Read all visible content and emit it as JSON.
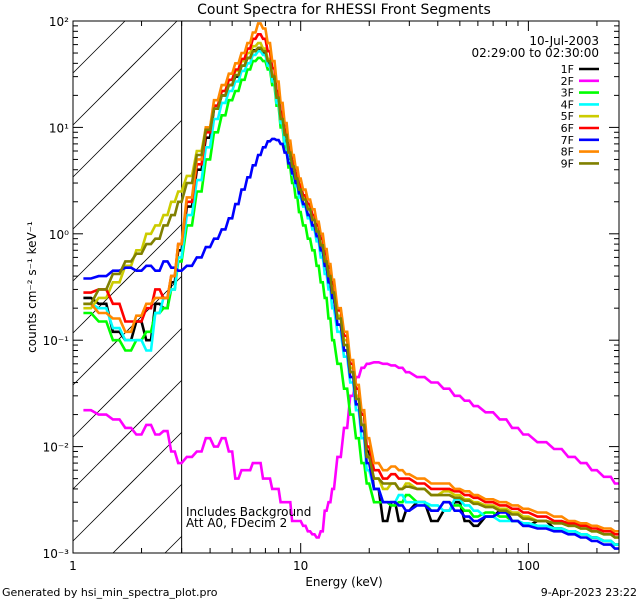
{
  "chart_data": {
    "type": "line",
    "title": "Count Spectra for RHESSI Front Segments",
    "xlabel": "Energy (keV)",
    "ylabel": "counts cm⁻² s⁻¹ keV⁻¹",
    "xscale": "log",
    "yscale": "log",
    "xlim": [
      1,
      250
    ],
    "ylim": [
      0.001,
      100
    ],
    "x_tick_labels": [
      "1",
      "10",
      "100"
    ],
    "y_tick_labels": [
      "10⁻³",
      "10⁻²",
      "10⁻¹",
      "10⁰",
      "10¹",
      "10²"
    ],
    "date": "10-Jul-2003",
    "time_range": "02:29:00 to 02:30:00",
    "annotation_lines": [
      "Includes Background",
      "Att A0, FDecim 2"
    ],
    "hatched_region_max_kev": 3,
    "energy_bins": [
      1.2,
      1.4,
      1.6,
      1.8,
      2.0,
      2.2,
      2.4,
      2.6,
      2.8,
      3.0,
      3.33,
      3.67,
      4.0,
      4.33,
      4.67,
      5.0,
      5.33,
      5.67,
      6.0,
      6.33,
      6.67,
      7.0,
      7.33,
      7.67,
      8.0,
      8.33,
      8.67,
      9.0,
      9.33,
      9.67,
      10.0,
      10.5,
      11.0,
      11.5,
      12.0,
      12.5,
      13.0,
      13.5,
      14.0,
      15.0,
      16.0,
      17.0,
      18.0,
      19.0,
      20.0,
      22.0,
      24.0,
      26.0,
      28.0,
      30.0,
      35.0,
      40.0,
      45.0,
      50.0,
      55.0,
      60.0,
      70.0,
      80.0,
      90.0,
      100.0,
      120.0,
      140.0,
      160.0,
      180.0,
      200.0,
      230.0,
      250.0
    ],
    "series": [
      {
        "name": "1F",
        "color": "#000000",
        "values": [
          0.25,
          0.22,
          0.12,
          0.1,
          0.15,
          0.1,
          0.22,
          0.2,
          0.35,
          0.7,
          1.8,
          4.0,
          8.0,
          15.0,
          20.0,
          25.0,
          30.0,
          38.0,
          45.0,
          53.0,
          55.0,
          50.0,
          40.0,
          28.0,
          18.0,
          11.0,
          7.5,
          5.0,
          3.8,
          3.0,
          2.4,
          1.9,
          1.5,
          1.2,
          0.95,
          0.7,
          0.5,
          0.35,
          0.25,
          0.14,
          0.08,
          0.05,
          0.03,
          0.02,
          0.009,
          0.004,
          0.002,
          0.003,
          0.002,
          0.0025,
          0.003,
          0.002,
          0.0025,
          0.003,
          0.002,
          0.0018,
          0.0022,
          0.0025,
          0.002,
          0.0018,
          0.002,
          0.0017,
          0.0016,
          0.0015,
          0.0014,
          0.0013,
          0.0012
        ]
      },
      {
        "name": "2F",
        "color": "#ff00ff",
        "values": [
          0.022,
          0.02,
          0.018,
          0.015,
          0.013,
          0.016,
          0.013,
          0.014,
          0.009,
          0.007,
          0.008,
          0.009,
          0.012,
          0.01,
          0.012,
          0.009,
          0.005,
          0.006,
          0.006,
          0.007,
          0.007,
          0.005,
          0.005,
          0.004,
          0.004,
          0.003,
          0.003,
          0.003,
          0.002,
          0.002,
          0.002,
          0.0018,
          0.0016,
          0.0015,
          0.0014,
          0.0016,
          0.0025,
          0.003,
          0.004,
          0.008,
          0.015,
          0.03,
          0.045,
          0.055,
          0.06,
          0.062,
          0.06,
          0.058,
          0.055,
          0.05,
          0.045,
          0.04,
          0.035,
          0.03,
          0.027,
          0.024,
          0.021,
          0.018,
          0.015,
          0.013,
          0.011,
          0.0095,
          0.008,
          0.007,
          0.006,
          0.0052,
          0.0045
        ]
      },
      {
        "name": "3F",
        "color": "#00ff00",
        "values": [
          0.18,
          0.15,
          0.1,
          0.08,
          0.1,
          0.12,
          0.18,
          0.2,
          0.3,
          0.55,
          1.2,
          2.5,
          5.0,
          9.0,
          13.0,
          18.0,
          22.0,
          28.0,
          35.0,
          42.0,
          45.0,
          42.0,
          35.0,
          25.0,
          16.0,
          10.0,
          6.5,
          4.2,
          3.0,
          2.2,
          1.6,
          1.2,
          0.9,
          0.7,
          0.5,
          0.35,
          0.25,
          0.16,
          0.1,
          0.06,
          0.035,
          0.02,
          0.012,
          0.007,
          0.0045,
          0.003,
          0.003,
          0.0028,
          0.003,
          0.0035,
          0.003,
          0.0025,
          0.003,
          0.0028,
          0.0025,
          0.0022,
          0.0024,
          0.0022,
          0.002,
          0.0019,
          0.0018,
          0.0017,
          0.0016,
          0.0015,
          0.0014,
          0.0013,
          0.0012
        ]
      },
      {
        "name": "4F",
        "color": "#00ffff",
        "values": [
          0.22,
          0.2,
          0.13,
          0.1,
          0.1,
          0.08,
          0.18,
          0.25,
          0.3,
          0.6,
          1.5,
          3.2,
          6.5,
          12.0,
          17.0,
          22.0,
          27.0,
          34.0,
          40.0,
          48.0,
          52.0,
          48.0,
          38.0,
          27.0,
          17.0,
          11.0,
          7.0,
          4.8,
          3.6,
          2.8,
          2.2,
          1.8,
          1.4,
          1.1,
          0.85,
          0.6,
          0.42,
          0.3,
          0.2,
          0.12,
          0.07,
          0.04,
          0.022,
          0.012,
          0.006,
          0.004,
          0.003,
          0.003,
          0.0035,
          0.003,
          0.003,
          0.0028,
          0.0025,
          0.0032,
          0.0028,
          0.0025,
          0.0022,
          0.002,
          0.002,
          0.0019,
          0.0018,
          0.0017,
          0.0016,
          0.0015,
          0.0014,
          0.0013,
          0.0012
        ]
      },
      {
        "name": "5F",
        "color": "#cccc00",
        "values": [
          0.2,
          0.25,
          0.35,
          0.5,
          0.7,
          1.0,
          1.2,
          1.5,
          2.0,
          2.5,
          3.5,
          6.0,
          10.0,
          16.0,
          22.0,
          28.0,
          34.0,
          42.0,
          50.0,
          58.0,
          62.0,
          55.0,
          44.0,
          31.0,
          20.0,
          13.0,
          9.0,
          6.0,
          4.5,
          3.5,
          2.8,
          2.2,
          1.8,
          1.4,
          1.1,
          0.8,
          0.58,
          0.42,
          0.3,
          0.17,
          0.1,
          0.055,
          0.03,
          0.016,
          0.008,
          0.005,
          0.004,
          0.0045,
          0.004,
          0.0045,
          0.004,
          0.0035,
          0.0038,
          0.0035,
          0.0032,
          0.003,
          0.0028,
          0.0026,
          0.0024,
          0.0022,
          0.002,
          0.0019,
          0.0018,
          0.0017,
          0.0016,
          0.0015,
          0.0014
        ]
      },
      {
        "name": "6F",
        "color": "#ff0000",
        "values": [
          0.28,
          0.3,
          0.22,
          0.15,
          0.15,
          0.2,
          0.3,
          0.25,
          0.4,
          0.8,
          2.0,
          4.5,
          9.0,
          16.0,
          22.0,
          28.0,
          35.0,
          44.0,
          55.0,
          68.0,
          75.0,
          68.0,
          52.0,
          36.0,
          22.0,
          14.0,
          9.5,
          6.5,
          4.8,
          3.7,
          2.9,
          2.3,
          1.9,
          1.5,
          1.2,
          0.9,
          0.65,
          0.48,
          0.34,
          0.19,
          0.11,
          0.06,
          0.035,
          0.02,
          0.01,
          0.006,
          0.005,
          0.0055,
          0.005,
          0.005,
          0.0045,
          0.004,
          0.004,
          0.0038,
          0.0035,
          0.0033,
          0.003,
          0.0028,
          0.0026,
          0.0024,
          0.0022,
          0.002,
          0.0019,
          0.0018,
          0.0017,
          0.0016,
          0.0015
        ]
      },
      {
        "name": "7F",
        "color": "#0000ff",
        "values": [
          0.38,
          0.4,
          0.45,
          0.48,
          0.45,
          0.5,
          0.45,
          0.55,
          0.48,
          0.45,
          0.5,
          0.6,
          0.75,
          0.9,
          1.1,
          1.4,
          1.9,
          2.6,
          3.4,
          4.4,
          5.5,
          6.5,
          7.4,
          7.8,
          7.6,
          7.0,
          5.8,
          4.6,
          3.7,
          3.0,
          2.4,
          1.9,
          1.5,
          1.2,
          0.95,
          0.7,
          0.5,
          0.35,
          0.25,
          0.14,
          0.08,
          0.045,
          0.025,
          0.014,
          0.007,
          0.004,
          0.003,
          0.003,
          0.0028,
          0.0025,
          0.0028,
          0.0025,
          0.003,
          0.0025,
          0.0022,
          0.002,
          0.0022,
          0.0024,
          0.002,
          0.0018,
          0.0017,
          0.0016,
          0.0015,
          0.0014,
          0.0013,
          0.0012,
          0.0011
        ]
      },
      {
        "name": "8F",
        "color": "#ff8800",
        "values": [
          0.22,
          0.18,
          0.16,
          0.12,
          0.17,
          0.22,
          0.25,
          0.25,
          0.4,
          0.8,
          2.2,
          5.0,
          10.0,
          18.0,
          25.0,
          32.0,
          40.0,
          50.0,
          62.0,
          78.0,
          95.0,
          85.0,
          62.0,
          42.0,
          27.0,
          17.0,
          11.0,
          7.5,
          5.5,
          4.2,
          3.3,
          2.6,
          2.1,
          1.7,
          1.3,
          1.0,
          0.72,
          0.52,
          0.37,
          0.2,
          0.12,
          0.065,
          0.038,
          0.022,
          0.012,
          0.007,
          0.006,
          0.0065,
          0.006,
          0.0055,
          0.005,
          0.0045,
          0.0045,
          0.004,
          0.0038,
          0.0035,
          0.0032,
          0.003,
          0.0028,
          0.0026,
          0.0024,
          0.0022,
          0.002,
          0.0019,
          0.0018,
          0.0017,
          0.0016
        ]
      },
      {
        "name": "9F",
        "color": "#808000",
        "values": [
          0.22,
          0.3,
          0.42,
          0.55,
          0.65,
          0.8,
          0.9,
          1.2,
          1.5,
          2.0,
          3.0,
          5.5,
          9.5,
          15.0,
          20.0,
          25.0,
          31.0,
          38.0,
          45.0,
          52.0,
          56.0,
          52.0,
          42.0,
          30.0,
          19.0,
          12.0,
          8.5,
          5.8,
          4.3,
          3.3,
          2.6,
          2.1,
          1.7,
          1.35,
          1.05,
          0.78,
          0.55,
          0.4,
          0.28,
          0.16,
          0.09,
          0.05,
          0.028,
          0.016,
          0.008,
          0.005,
          0.0045,
          0.0045,
          0.004,
          0.0042,
          0.004,
          0.0035,
          0.0035,
          0.0033,
          0.0031,
          0.0029,
          0.0027,
          0.0025,
          0.0023,
          0.0021,
          0.002,
          0.0019,
          0.0018,
          0.0017,
          0.0016,
          0.0015,
          0.0014
        ]
      }
    ]
  },
  "footer": {
    "generated_by": "Generated by hsi_min_spectra_plot.pro",
    "timestamp": "9-Apr-2023 23:22"
  }
}
